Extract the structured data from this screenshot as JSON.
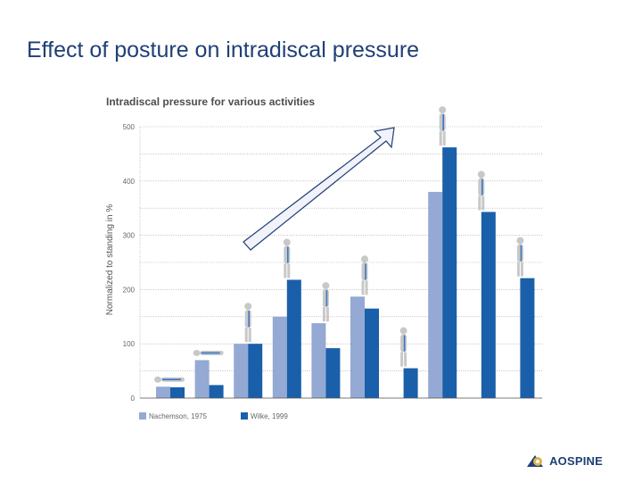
{
  "slide": {
    "title": "Effect of posture on intradiscal pressure"
  },
  "logo": {
    "text_a": "AO",
    "text_b": "SPINE"
  },
  "colors": {
    "series1": "#94a9d3",
    "series2": "#1a5faa",
    "grid": "#999999",
    "arrow_fill": "#f2f2fa",
    "arrow_stroke": "#1f3f77"
  },
  "chart_data": {
    "type": "bar",
    "title": "Intradiscal pressure for various activities",
    "ylabel": "Normalized to standing in %",
    "xlabel": "",
    "ylim": [
      0,
      500
    ],
    "yticks": [
      0,
      100,
      200,
      300,
      400,
      500
    ],
    "grid": true,
    "legend_placement": "bottom-left",
    "categories": [
      "",
      "",
      "",
      "",
      "",
      "",
      "",
      "",
      "",
      ""
    ],
    "category_icons": [
      "lying-supine-icon",
      "lying-side-icon",
      "standing-icon",
      "standing-forward-bend-icon",
      "sitting-relaxed-icon",
      "sitting-upright-icon",
      "sitting-reclined-icon",
      "standing-lifting-bent-icon",
      "lifting-bent-knees-icon",
      "standing-holding-weight-icon"
    ],
    "series": [
      {
        "name": "Nachemson, 1975",
        "values": [
          21,
          70,
          100,
          150,
          138,
          187,
          null,
          380,
          null,
          null
        ]
      },
      {
        "name": "Wilke, 1999",
        "values": [
          20,
          24,
          100,
          218,
          92,
          165,
          55,
          462,
          343,
          221
        ]
      }
    ]
  }
}
